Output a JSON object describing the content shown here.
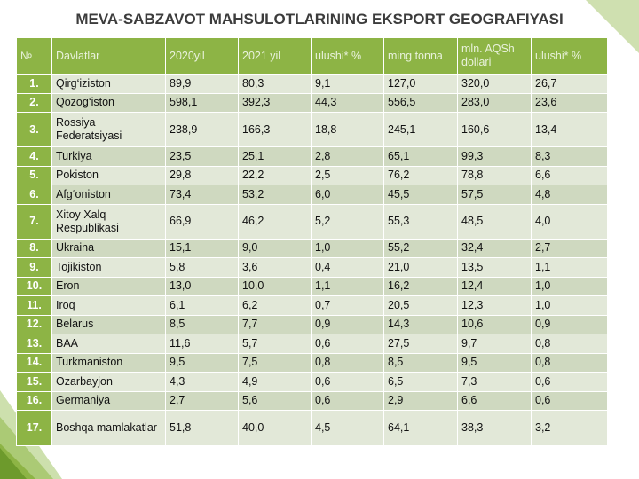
{
  "title": "MEVA-SABZAVOT MAHSULOTLARINING EKSPORT GEOGRAFIYASI",
  "table": {
    "header": [
      "№",
      "Davlatlar",
      "2020yil",
      "2021 yil",
      "ulushi* %",
      "ming tonna",
      "mln. AQSh dollari",
      "ulushi* %"
    ],
    "rows": [
      [
        "1.",
        "Qirg‘iziston",
        "89,9",
        "80,3",
        "9,1",
        "127,0",
        "320,0",
        "26,7"
      ],
      [
        "2.",
        "Qozog‘iston",
        "598,1",
        "392,3",
        "44,3",
        "556,5",
        "283,0",
        "23,6"
      ],
      [
        "3.",
        "Rossiya Federatsiyasi",
        "238,9",
        "166,3",
        "18,8",
        "245,1",
        "160,6",
        "13,4"
      ],
      [
        "4.",
        "Turkiya",
        "23,5",
        "25,1",
        "2,8",
        "65,1",
        "99,3",
        "8,3"
      ],
      [
        "5.",
        "Pokiston",
        "29,8",
        "22,2",
        "2,5",
        "76,2",
        "78,8",
        "6,6"
      ],
      [
        "6.",
        "Afg‘oniston",
        "73,4",
        "53,2",
        "6,0",
        "45,5",
        "57,5",
        "4,8"
      ],
      [
        "7.",
        "Xitoy Xalq Respublikasi",
        "66,9",
        "46,2",
        "5,2",
        "55,3",
        "48,5",
        "4,0"
      ],
      [
        "8.",
        "Ukraina",
        "15,1",
        "9,0",
        "1,0",
        "55,2",
        "32,4",
        "2,7"
      ],
      [
        "9.",
        "Tojikiston",
        "5,8",
        "3,6",
        "0,4",
        "21,0",
        "13,5",
        "1,1"
      ],
      [
        "10.",
        "Eron",
        "13,0",
        "10,0",
        "1,1",
        "16,2",
        "12,4",
        "1,0"
      ],
      [
        "11.",
        "Iroq",
        "6,1",
        "6,2",
        "0,7",
        "20,5",
        "12,3",
        "1,0"
      ],
      [
        "12.",
        "Belarus",
        "8,5",
        "7,7",
        "0,9",
        "14,3",
        "10,6",
        "0,9"
      ],
      [
        "13.",
        "BAA",
        "11,6",
        "5,7",
        "0,6",
        "27,5",
        "9,7",
        "0,8"
      ],
      [
        "14.",
        "Turkmaniston",
        "9,5",
        "7,5",
        "0,8",
        "8,5",
        "9,5",
        "0,8"
      ],
      [
        "15.",
        "Ozarbayjon",
        "4,3",
        "4,9",
        "0,6",
        "6,5",
        "7,3",
        "0,6"
      ],
      [
        "16.",
        "Germaniya",
        "2,7",
        "5,6",
        "0,6",
        "2,9",
        "6,6",
        "0,6"
      ],
      [
        "17.",
        "Boshqa mamlakatlar",
        "51,8",
        "40,0",
        "4,5",
        "64,1",
        "38,3",
        "3,2"
      ]
    ]
  }
}
